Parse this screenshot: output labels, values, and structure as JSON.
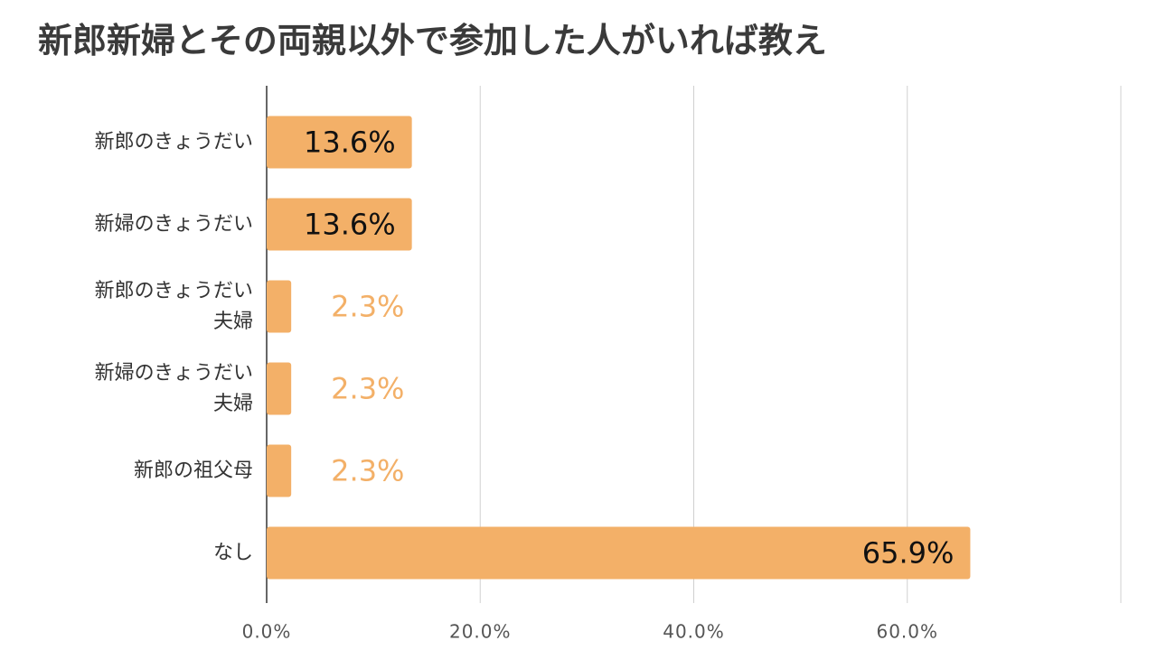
{
  "chart_data": {
    "type": "barh",
    "title": "新郎新婦とその両親以外で参加した人がいれば教え",
    "categories": [
      "新郎のきょうだい",
      "新婦のきょうだい",
      "新郎のきょうだい\n夫婦",
      "新婦のきょうだい\n夫婦",
      "新郎の祖父母",
      "なし"
    ],
    "values": [
      13.6,
      13.6,
      2.3,
      2.3,
      2.3,
      65.9
    ],
    "value_labels": [
      "13.6%",
      "13.6%",
      "2.3%",
      "2.3%",
      "2.3%",
      "65.9%"
    ],
    "color": "#f3b068",
    "xlim": [
      0,
      80
    ],
    "xticks": [
      {
        "value": 0,
        "label": "0.0%"
      },
      {
        "value": 20,
        "label": "20.0%"
      },
      {
        "value": 40,
        "label": "40.0%"
      },
      {
        "value": 60,
        "label": "60.0%"
      }
    ],
    "grid": true
  }
}
